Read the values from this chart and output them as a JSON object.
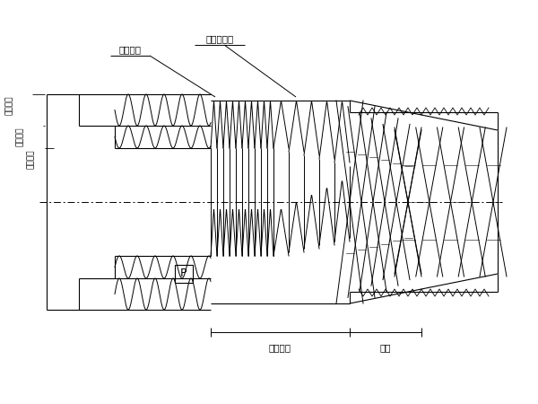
{
  "bg_color": "#ffffff",
  "line_color": "#000000",
  "labels": {
    "wanzheng": "完整螺纹",
    "buwan": "不完整螺纹",
    "da_jing": "螺纹大径",
    "zhong_jing": "螺纹中径",
    "xiao_jing": "螺纹小径",
    "youxiao": "有效螺纹",
    "luowei": "螺尾",
    "P": "P"
  },
  "figsize": [
    6.0,
    4.5
  ],
  "dpi": 100
}
